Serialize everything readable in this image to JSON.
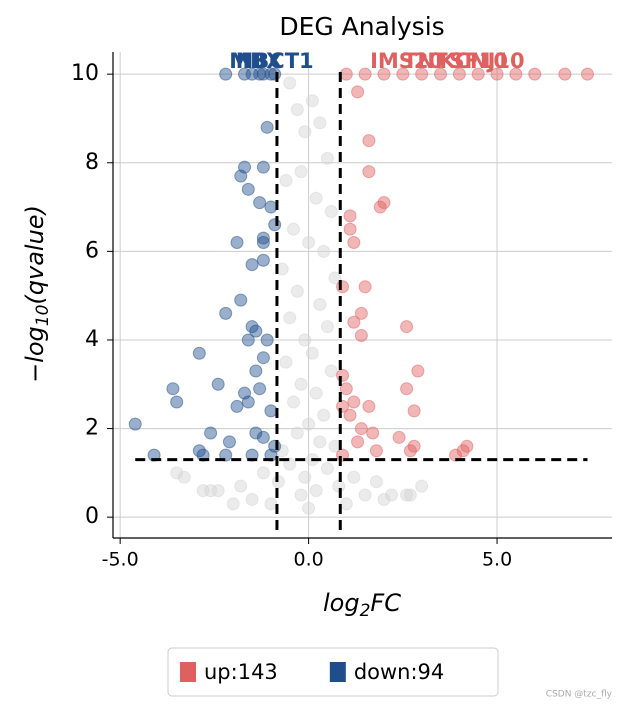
{
  "chart_data": {
    "type": "scatter",
    "title": "DEG Analysis",
    "xlabel": [
      "log",
      "2",
      "FC"
    ],
    "ylabel": [
      "−log",
      "10",
      "(qvalue)"
    ],
    "xlim": [
      -5.19,
      8.05
    ],
    "ylim": [
      -0.47,
      10.5
    ],
    "xticks": [
      {
        "value": -5,
        "label": "-5.0"
      },
      {
        "value": 0,
        "label": "0.0"
      },
      {
        "value": 5,
        "label": "5.0"
      }
    ],
    "yticks": [
      0,
      2,
      4,
      6,
      8,
      10
    ],
    "grid": true,
    "legend": "bottom",
    "vlines": [
      -0.84,
      0.84
    ],
    "hline": 1.3,
    "hline_x": [
      -4.6,
      7.4
    ],
    "series": [
      {
        "color": "#d3d3d3",
        "x": [
          -0.5,
          -0.3,
          -0.1,
          0.1,
          0.3,
          0.5,
          -0.6,
          -0.2,
          0.2,
          0.6,
          -0.4,
          0.0,
          0.4,
          -0.7,
          0.7,
          -0.3,
          0.3,
          -0.5,
          0.5,
          -0.1,
          0.1,
          -0.6,
          0.6,
          -0.2,
          0.2,
          -0.4,
          0.4,
          0.0,
          -0.3,
          0.3,
          -0.7,
          0.7,
          -0.5,
          0.5,
          -1.2,
          1.2,
          -1.8,
          1.8,
          -2.4,
          2.2,
          -2.8,
          2.6,
          -3.3,
          3.0,
          -1.5,
          1.5,
          -2.0,
          2.0,
          -1.0,
          1.0,
          -3.5,
          -2.6,
          2.7,
          -0.8,
          0.8,
          -0.2,
          0.2,
          0.0,
          -0.1,
          0.1
        ],
        "y": [
          9.8,
          9.2,
          8.7,
          9.4,
          8.9,
          8.1,
          7.6,
          7.8,
          7.2,
          6.9,
          6.5,
          6.2,
          6.0,
          5.6,
          5.4,
          5.1,
          4.8,
          4.5,
          4.3,
          4.0,
          3.7,
          3.5,
          3.3,
          3.0,
          2.8,
          2.6,
          2.3,
          2.1,
          1.9,
          1.7,
          1.5,
          1.6,
          1.2,
          1.1,
          1.0,
          0.9,
          0.7,
          0.8,
          0.6,
          0.5,
          0.6,
          0.5,
          0.9,
          0.7,
          0.4,
          0.5,
          0.3,
          0.4,
          0.3,
          0.3,
          1.0,
          0.6,
          0.5,
          0.8,
          0.7,
          0.5,
          0.6,
          0.2,
          0.9,
          1.3
        ]
      },
      {
        "name": "down:94",
        "color": "#1f4e8c",
        "x": [
          -2.2,
          -1.7,
          -1.5,
          -1.2,
          -1.0,
          -1.3,
          -0.9,
          -1.1,
          -1.7,
          -1.8,
          -1.2,
          -1.6,
          -1.3,
          -1.0,
          -0.9,
          -1.2,
          -1.2,
          -1.9,
          -1.2,
          -1.5,
          -1.8,
          -2.2,
          -1.5,
          -1.4,
          -1.1,
          -1.6,
          -1.2,
          -2.9,
          -1.4,
          -2.4,
          -3.6,
          -1.7,
          -1.3,
          -3.5,
          -1.9,
          -1.6,
          -1.0,
          -4.6,
          -2.6,
          -1.4,
          -2.1,
          -1.2,
          -0.9,
          -4.1,
          -2.9,
          -2.8,
          -2.2,
          -1.5,
          -1.0
        ],
        "y": [
          10,
          10,
          10,
          10,
          10,
          10,
          10,
          8.8,
          7.9,
          7.7,
          7.9,
          7.4,
          7.1,
          7.0,
          6.6,
          6.3,
          6.2,
          6.2,
          5.8,
          5.7,
          4.9,
          4.6,
          4.3,
          4.2,
          4.0,
          4.0,
          3.6,
          3.7,
          3.3,
          3.0,
          2.9,
          2.8,
          2.9,
          2.6,
          2.5,
          2.6,
          2.4,
          2.1,
          1.9,
          1.9,
          1.7,
          1.8,
          1.6,
          1.4,
          1.5,
          1.4,
          1.4,
          1.4,
          1.4
        ]
      },
      {
        "name": "up:143",
        "color": "#e06060",
        "x": [
          1.0,
          1.5,
          2.0,
          2.5,
          3.0,
          3.5,
          4.0,
          4.5,
          5.0,
          5.5,
          6.0,
          6.8,
          7.4,
          1.3,
          1.6,
          1.6,
          1.9,
          2.0,
          1.1,
          1.1,
          1.2,
          0.9,
          1.5,
          1.4,
          1.2,
          2.6,
          1.4,
          2.9,
          0.9,
          2.6,
          1.0,
          1.2,
          1.6,
          2.8,
          0.9,
          1.1,
          1.4,
          1.7,
          1.3,
          2.4,
          1.8,
          2.7,
          2.8,
          4.2,
          4.1,
          3.9,
          0.9
        ],
        "y": [
          10,
          10,
          10,
          10,
          10,
          10,
          10,
          10,
          10,
          10,
          10,
          10,
          10,
          9.6,
          8.5,
          7.8,
          7.0,
          7.1,
          6.8,
          6.5,
          6.2,
          5.2,
          5.2,
          4.6,
          4.4,
          4.3,
          4.1,
          3.3,
          3.2,
          2.9,
          2.9,
          2.6,
          2.5,
          2.4,
          2.5,
          2.3,
          2.0,
          1.9,
          1.7,
          1.8,
          1.5,
          1.5,
          1.6,
          1.6,
          1.5,
          1.4,
          1.4
        ]
      }
    ],
    "annotations": [
      {
        "text": "MBX",
        "x": -1.4,
        "series": 1
      },
      {
        "text": "NBCT1",
        "x": -0.9,
        "series": 1
      },
      {
        "text": "IMS20",
        "x": 2.6,
        "series": 2
      },
      {
        "text": "TNFSF10",
        "x": 3.9,
        "series": 2
      },
      {
        "text": "KCNJ10",
        "x": 4.6,
        "series": 2
      }
    ],
    "watermark": "CSDN @tzc_fly"
  }
}
